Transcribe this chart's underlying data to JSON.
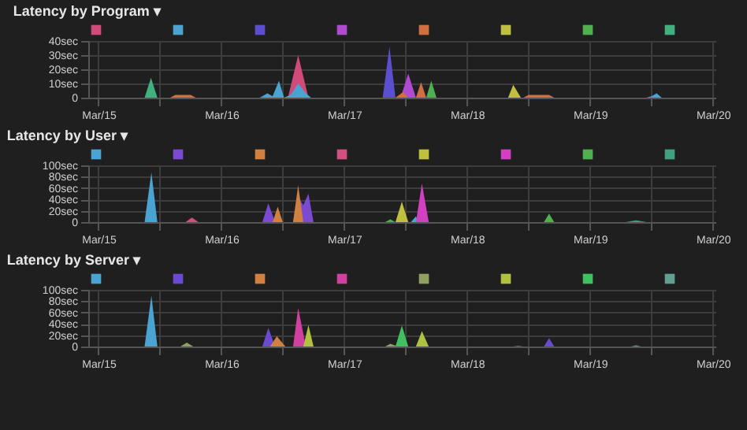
{
  "chart_data": [
    {
      "type": "area",
      "title": "Latency by Program ▾",
      "grid": true,
      "xlim": [
        "--03-14T22:00",
        "--03-20T00:30"
      ],
      "xticks": [
        {
          "value": "--03-15",
          "label": "Mar/15"
        },
        {
          "value": "--03-15T12:00",
          "label": null
        },
        {
          "value": "--03-16",
          "label": "Mar/16"
        },
        {
          "value": "--03-16T12:00",
          "label": null
        },
        {
          "value": "--03-17",
          "label": "Mar/17"
        },
        {
          "value": "--03-17T12:00",
          "label": null
        },
        {
          "value": "--03-18",
          "label": "Mar/18"
        },
        {
          "value": "--03-18T12:00",
          "label": null
        },
        {
          "value": "--03-19",
          "label": "Mar/19"
        },
        {
          "value": "--03-19T12:00",
          "label": null
        },
        {
          "value": "--03-20",
          "label": "Mar/20"
        }
      ],
      "ylim": [
        0,
        40
      ],
      "yticks": [
        {
          "value": 0,
          "label": "0"
        },
        {
          "value": 10,
          "label": "10sec"
        },
        {
          "value": 20,
          "label": "20sec"
        },
        {
          "value": 30,
          "label": "30sec"
        },
        {
          "value": 40,
          "label": "40sec"
        }
      ],
      "series": [
        {
          "color": "#d04a7a",
          "x": [
            "--03-16T13:00",
            "--03-16T15:00",
            "--03-16T17:00"
          ],
          "values": [
            0,
            30,
            0
          ]
        },
        {
          "color": "#4aa3d0",
          "x": [
            "--03-16T07:30",
            "--03-16T09:00",
            "--03-16T10:00",
            "--03-16T11:15",
            "--03-16T12:15",
            "--03-16T13:30",
            "--03-16T15:00",
            "--03-16T16:30",
            "--03-16T17:30",
            "--03-19T11:00",
            "--03-19T12:00",
            "--03-19T13:00",
            "--03-19T14:00"
          ],
          "values": [
            0,
            3,
            1,
            12,
            0,
            2,
            10,
            3,
            0,
            0,
            1,
            3,
            0
          ]
        },
        {
          "color": "#5b4fd0",
          "x": [
            "--03-17T07:30",
            "--03-17T08:50",
            "--03-17T10:00"
          ],
          "values": [
            0,
            36,
            0
          ]
        },
        {
          "color": "#b04ad0",
          "x": [
            "--03-17T11:00",
            "--03-17T12:30",
            "--03-17T14:00"
          ],
          "values": [
            0,
            17,
            0
          ]
        },
        {
          "color": "#d07040",
          "x": [
            "--03-15T14:00",
            "--03-15T15:00",
            "--03-15T18:00",
            "--03-15T19:00",
            "--03-17T10:00",
            "--03-17T11:30",
            "--03-17T12:30",
            "--03-17T14:00",
            "--03-17T15:00",
            "--03-17T16:00",
            "--03-18T11:00",
            "--03-18T12:00",
            "--03-18T16:00",
            "--03-18T17:00"
          ],
          "values": [
            0,
            2,
            2,
            0,
            0,
            4,
            0,
            0,
            11,
            0,
            0,
            2,
            2,
            0
          ]
        },
        {
          "color": "#c0c040",
          "x": [
            "--03-18T08:00",
            "--03-18T09:00",
            "--03-18T10:30"
          ],
          "values": [
            0,
            9,
            0
          ]
        },
        {
          "color": "#50b050",
          "x": [
            "--03-17T16:00",
            "--03-17T17:00",
            "--03-17T18:00"
          ],
          "values": [
            0,
            12,
            0
          ]
        },
        {
          "color": "#40b080",
          "x": [
            "--03-15T09:00",
            "--03-15T10:15",
            "--03-15T11:30"
          ],
          "values": [
            0,
            14,
            0
          ]
        }
      ]
    },
    {
      "type": "area",
      "title": "Latency by User ▾",
      "grid": true,
      "xlim": [
        "--03-14T22:00",
        "--03-20T00:30"
      ],
      "xticks": [
        {
          "value": "--03-15",
          "label": "Mar/15"
        },
        {
          "value": "--03-15T12:00",
          "label": null
        },
        {
          "value": "--03-16",
          "label": "Mar/16"
        },
        {
          "value": "--03-16T12:00",
          "label": null
        },
        {
          "value": "--03-17",
          "label": "Mar/17"
        },
        {
          "value": "--03-17T12:00",
          "label": null
        },
        {
          "value": "--03-18",
          "label": "Mar/18"
        },
        {
          "value": "--03-18T12:00",
          "label": null
        },
        {
          "value": "--03-19",
          "label": "Mar/19"
        },
        {
          "value": "--03-19T12:00",
          "label": null
        },
        {
          "value": "--03-20",
          "label": "Mar/20"
        }
      ],
      "ylim": [
        0,
        100
      ],
      "yticks": [
        0,
        {
          "value": 20,
          "label": "20sec"
        },
        {
          "value": 40,
          "label": "40sec"
        },
        {
          "value": 60,
          "label": "60sec"
        },
        {
          "value": 80,
          "label": "80sec"
        },
        {
          "value": 100,
          "label": "100sec"
        }
      ],
      "series": [
        {
          "color": "#4aa3d0",
          "x": [
            "--03-15T09:00",
            "--03-15T10:20",
            "--03-15T11:30",
            "--03-17T13:00",
            "--03-17T14:00",
            "--03-17T14:30"
          ],
          "values": [
            0,
            88,
            0,
            0,
            10,
            0
          ]
        },
        {
          "color": "#7a4ad0",
          "x": [
            "--03-16T08:00",
            "--03-16T09:10",
            "--03-16T10:30",
            "--03-16T14:00",
            "--03-16T15:00",
            "--03-16T16:00",
            "--03-16T17:00",
            "--03-16T18:00"
          ],
          "values": [
            0,
            33,
            0,
            0,
            45,
            30,
            50,
            0
          ]
        },
        {
          "color": "#d08040",
          "x": [
            "--03-16T10:00",
            "--03-16T11:00",
            "--03-16T12:00",
            "--03-16T14:00",
            "--03-16T15:00",
            "--03-16T16:00"
          ],
          "values": [
            0,
            27,
            0,
            0,
            65,
            0
          ]
        },
        {
          "color": "#d05080",
          "x": [
            "--03-15T17:00",
            "--03-15T18:15",
            "--03-15T19:30"
          ],
          "values": [
            0,
            8,
            0
          ]
        },
        {
          "color": "#c0c040",
          "x": [
            "--03-17T10:00",
            "--03-17T11:15",
            "--03-17T12:30"
          ],
          "values": [
            0,
            36,
            0
          ]
        },
        {
          "color": "#d040c0",
          "x": [
            "--03-17T14:00",
            "--03-17T15:10",
            "--03-17T16:30"
          ],
          "values": [
            0,
            68,
            0
          ]
        },
        {
          "color": "#50b050",
          "x": [
            "--03-17T08:00",
            "--03-17T09:00",
            "--03-17T10:00",
            "--03-18T15:00",
            "--03-18T16:00",
            "--03-18T17:00"
          ],
          "values": [
            0,
            5,
            0,
            0,
            15,
            0
          ]
        },
        {
          "color": "#40a080",
          "x": [
            "--03-19T07:00",
            "--03-19T09:00",
            "--03-19T11:00"
          ],
          "values": [
            0,
            3,
            0
          ]
        }
      ]
    },
    {
      "type": "area",
      "title": "Latency by Server ▾",
      "grid": true,
      "xlim": [
        "--03-14T22:00",
        "--03-20T00:30"
      ],
      "xticks": [
        {
          "value": "--03-15",
          "label": "Mar/15"
        },
        {
          "value": "--03-15T12:00",
          "label": null
        },
        {
          "value": "--03-16",
          "label": "Mar/16"
        },
        {
          "value": "--03-16T12:00",
          "label": null
        },
        {
          "value": "--03-17",
          "label": "Mar/17"
        },
        {
          "value": "--03-17T12:00",
          "label": null
        },
        {
          "value": "--03-18",
          "label": "Mar/18"
        },
        {
          "value": "--03-18T12:00",
          "label": null
        },
        {
          "value": "--03-19",
          "label": "Mar/19"
        },
        {
          "value": "--03-19T12:00",
          "label": null
        },
        {
          "value": "--03-20",
          "label": "Mar/20"
        }
      ],
      "ylim": [
        0,
        100
      ],
      "yticks": [
        0,
        {
          "value": 20,
          "label": "20sec"
        },
        {
          "value": 40,
          "label": "40sec"
        },
        {
          "value": 60,
          "label": "60sec"
        },
        {
          "value": 80,
          "label": "80sec"
        },
        {
          "value": 100,
          "label": "100sec"
        }
      ],
      "series": [
        {
          "color": "#4aa3d0",
          "x": [
            "--03-15T09:00",
            "--03-15T10:20",
            "--03-15T11:30"
          ],
          "values": [
            0,
            90,
            0
          ]
        },
        {
          "color": "#6a4ad0",
          "x": [
            "--03-16T08:00",
            "--03-16T09:10",
            "--03-16T10:30",
            "--03-18T15:00",
            "--03-18T16:00",
            "--03-18T17:00"
          ],
          "values": [
            0,
            33,
            0,
            0,
            15,
            0
          ]
        },
        {
          "color": "#d08040",
          "x": [
            "--03-16T09:30",
            "--03-16T10:50",
            "--03-16T12:30"
          ],
          "values": [
            0,
            18,
            0
          ]
        },
        {
          "color": "#d040a0",
          "x": [
            "--03-16T14:00",
            "--03-16T15:00",
            "--03-16T16:30"
          ],
          "values": [
            0,
            68,
            0
          ]
        },
        {
          "color": "#90a060",
          "x": [
            "--03-15T16:00",
            "--03-15T17:15",
            "--03-15T18:30",
            "--03-17T08:00",
            "--03-17T09:00",
            "--03-17T10:30"
          ],
          "values": [
            0,
            7,
            0,
            0,
            5,
            0
          ]
        },
        {
          "color": "#b0c040",
          "x": [
            "--03-16T16:00",
            "--03-16T17:00",
            "--03-16T18:00",
            "--03-17T14:00",
            "--03-17T15:10",
            "--03-17T16:30"
          ],
          "values": [
            0,
            38,
            0,
            0,
            27,
            0
          ]
        },
        {
          "color": "#40c060",
          "x": [
            "--03-17T10:00",
            "--03-17T11:15",
            "--03-17T12:30"
          ],
          "values": [
            0,
            37,
            0
          ]
        },
        {
          "color": "#60a090",
          "x": [
            "--03-18T09:00",
            "--03-18T10:00",
            "--03-18T11:00",
            "--03-19T08:00",
            "--03-19T09:00",
            "--03-19T10:00"
          ],
          "values": [
            0,
            1,
            0,
            0,
            2,
            0
          ]
        }
      ]
    }
  ]
}
